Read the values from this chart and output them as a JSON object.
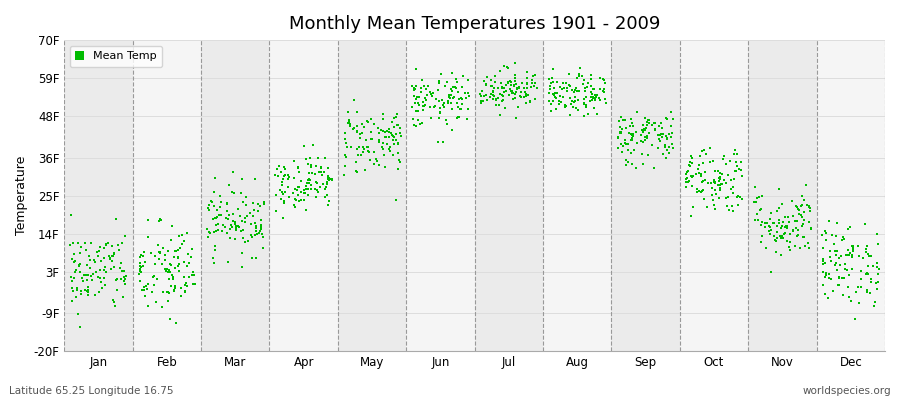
{
  "title": "Monthly Mean Temperatures 1901 - 2009",
  "ylabel": "Temperature",
  "xlabel_bottom_left": "Latitude 65.25 Longitude 16.75",
  "xlabel_bottom_right": "worldspecies.org",
  "legend_label": "Mean Temp",
  "dot_color": "#00bb00",
  "background_color": "#ffffff",
  "band_color_odd": "#ebebeb",
  "band_color_even": "#f5f5f5",
  "yticks": [
    -20,
    -9,
    3,
    14,
    25,
    36,
    48,
    59,
    70
  ],
  "ytick_labels": [
    "-20F",
    "-9F",
    "3F",
    "14F",
    "25F",
    "36F",
    "48F",
    "59F",
    "70F"
  ],
  "ylim": [
    -20,
    70
  ],
  "months": [
    "Jan",
    "Feb",
    "Mar",
    "Apr",
    "May",
    "Jun",
    "Jul",
    "Aug",
    "Sep",
    "Oct",
    "Nov",
    "Dec"
  ],
  "n_years": 109,
  "mean_temps_F": [
    3,
    3,
    18,
    29,
    41,
    52,
    56,
    54,
    42,
    30,
    17,
    5
  ],
  "spread_F": [
    6,
    7,
    5,
    4,
    5,
    4,
    3,
    3,
    4,
    5,
    5,
    6
  ],
  "random_seed": 42,
  "dot_size": 4,
  "vline_color": "#999999",
  "gridline_color": "#dddddd"
}
